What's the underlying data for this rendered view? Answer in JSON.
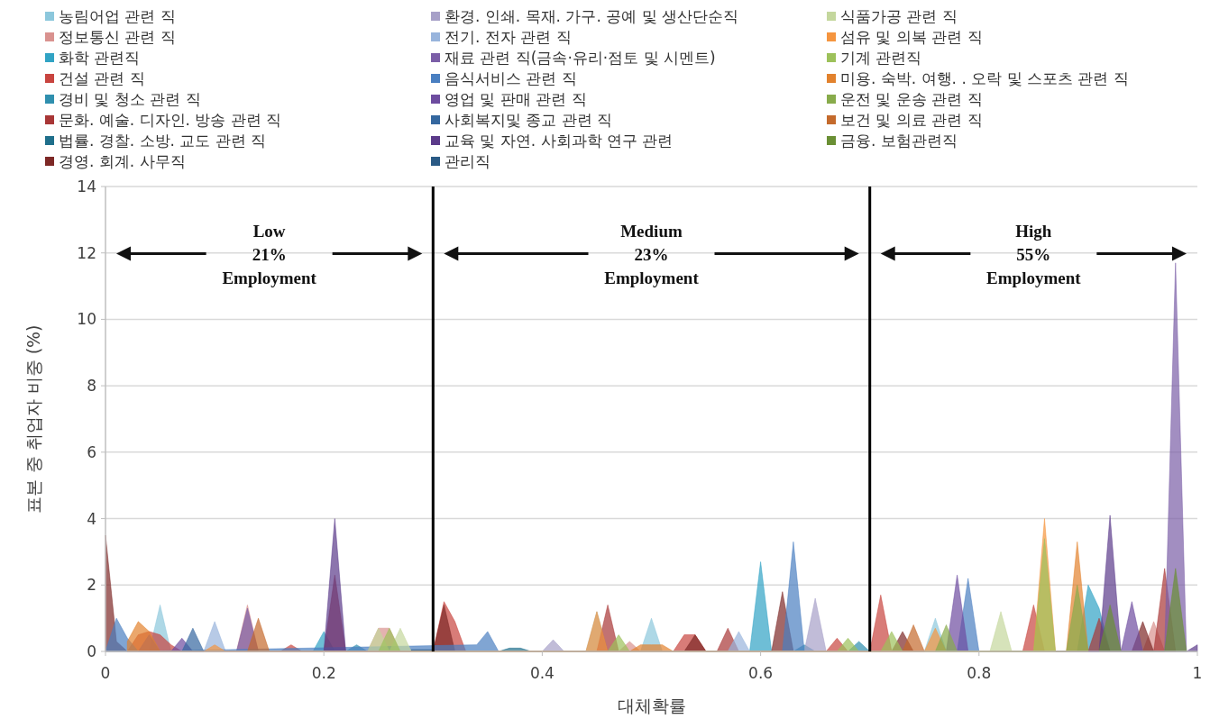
{
  "chart_data": {
    "type": "area",
    "xlabel": "대체확률",
    "ylabel": "표본 중 취업자 비중 (%)",
    "xlim": [
      0,
      1
    ],
    "xticks": [
      0,
      0.2,
      0.4,
      0.6,
      0.8,
      1
    ],
    "ylim": [
      0,
      14
    ],
    "yticks": [
      0,
      2,
      4,
      6,
      8,
      10,
      12,
      14
    ],
    "grid": "y",
    "legend": "top",
    "ref_lines": [
      {
        "axis": "x",
        "value": 0.3,
        "color": "#000000"
      },
      {
        "axis": "x",
        "value": 0.7,
        "color": "#000000"
      }
    ],
    "annotations": [
      "Low\n21%\nEmployment",
      "Medium\n23%\nEmployment",
      "High\n55%\nEmployment"
    ],
    "series": [
      {
        "name": "농림어업 관련 직",
        "color": "#8cc7dc",
        "x": [
          0.04,
          0.05,
          0.06,
          0.44,
          0.45,
          0.46,
          0.49,
          0.5,
          0.51,
          0.75,
          0.76,
          0.77
        ],
        "values": [
          0,
          1.4,
          0,
          0,
          1.2,
          0,
          0,
          1,
          0,
          0,
          1,
          0
        ]
      },
      {
        "name": "정보통신 관련 직",
        "color": "#d9928f",
        "x": [
          0.12,
          0.13,
          0.14,
          0.24,
          0.25,
          0.26,
          0.27,
          0.47,
          0.48,
          0.49,
          0.95,
          0.96,
          0.97
        ],
        "values": [
          0,
          1.4,
          0,
          0,
          0.7,
          0.7,
          0,
          0,
          0.3,
          0,
          0,
          0.9,
          0
        ]
      },
      {
        "name": "화학 관련직",
        "color": "#31a3c4",
        "x": [
          0.19,
          0.2,
          0.21,
          0.59,
          0.6,
          0.61,
          0.89,
          0.9,
          0.91,
          0.92
        ],
        "values": [
          0,
          0.6,
          0,
          0,
          2.7,
          0,
          0,
          2,
          1.3,
          0
        ]
      },
      {
        "name": "건설 관련 직",
        "color": "#c8443f",
        "x": [
          0.02,
          0.03,
          0.04,
          0.05,
          0.06,
          0.07,
          0.16,
          0.17,
          0.18,
          0.3,
          0.31,
          0.32,
          0.33,
          0.52,
          0.53,
          0.54,
          0.55,
          0.66,
          0.67,
          0.68,
          0.7,
          0.71,
          0.72,
          0.84,
          0.85,
          0.86
        ],
        "values": [
          0,
          0.5,
          0.6,
          0.5,
          0.2,
          0,
          0,
          0.2,
          0,
          0,
          1.5,
          0.9,
          0,
          0,
          0.5,
          0.5,
          0,
          0,
          0.4,
          0,
          0,
          1.7,
          0,
          0,
          1.4,
          0
        ]
      },
      {
        "name": "경비 및 청소 관련 직",
        "color": "#2f8fae",
        "x": [
          0.22,
          0.23,
          0.24,
          0.63,
          0.64,
          0.65,
          0.68,
          0.69,
          0.7
        ],
        "values": [
          0,
          0.2,
          0,
          0,
          0.2,
          0,
          0,
          0.3,
          0
        ]
      },
      {
        "name": "문화. 예술. 디자인. 방송 관련 직",
        "color": "#a83636",
        "x": [
          0.2,
          0.21,
          0.22,
          0.45,
          0.46,
          0.47,
          0.56,
          0.57,
          0.58,
          0.9,
          0.91,
          0.92,
          0.96,
          0.97,
          0.98
        ],
        "values": [
          0,
          2.3,
          0,
          0,
          1.4,
          0,
          0,
          0.7,
          0,
          0,
          1,
          0,
          0,
          2.5,
          0
        ]
      },
      {
        "name": "법률. 경찰. 소방. 교도 관련 직",
        "color": "#1f6f8b",
        "x": [
          0.36,
          0.37,
          0.38,
          0.39
        ],
        "values": [
          0,
          0.1,
          0.1,
          0
        ]
      },
      {
        "name": "경영. 회계. 사무직",
        "color": "#7d2826",
        "x": [
          0,
          0.01,
          0.02,
          0.3,
          0.31,
          0.32,
          0.53,
          0.54,
          0.55,
          0.61,
          0.62,
          0.63,
          0.72,
          0.73,
          0.74,
          0.94,
          0.95,
          0.96
        ],
        "values": [
          3.5,
          0.3,
          0,
          0,
          1.4,
          0,
          0,
          0.5,
          0,
          0,
          1.8,
          0,
          0,
          0.6,
          0,
          0,
          0.9,
          0
        ]
      },
      {
        "name": "환경. 인쇄. 목재. 가구. 공예 및 생산단순직",
        "color": "#a7a0c8",
        "x": [
          0.4,
          0.41,
          0.42,
          0.64,
          0.65,
          0.66
        ],
        "values": [
          0,
          0.35,
          0,
          0,
          1.6,
          0
        ]
      },
      {
        "name": "전기. 전자 관련 직",
        "color": "#98b4dc",
        "x": [
          0.09,
          0.1,
          0.11,
          0.57,
          0.58,
          0.59
        ],
        "values": [
          0,
          0.9,
          0,
          0,
          0.6,
          0
        ]
      },
      {
        "name": "재료 관련 직(금속·유리·점토 및 시멘트)",
        "color": "#7b5ea7",
        "x": [
          0.12,
          0.13,
          0.14,
          0.97,
          0.98,
          0.99
        ],
        "values": [
          0,
          1.3,
          0,
          0,
          11.7,
          0
        ]
      },
      {
        "name": "음식서비스 관련 직",
        "color": "#4a7fc1",
        "x": [
          0,
          0.01,
          0.02,
          0.03,
          0.34,
          0.35,
          0.36,
          0.62,
          0.63,
          0.64,
          0.78,
          0.79,
          0.8
        ],
        "values": [
          0,
          1,
          0.4,
          0,
          0.2,
          0.6,
          0,
          0,
          3.3,
          0,
          0,
          2.2,
          0
        ]
      },
      {
        "name": "영업 및 판매 관련 직",
        "color": "#6d4c9f",
        "x": [
          0.03,
          0.04,
          0.05,
          0.06,
          0.07,
          0.08,
          0.77,
          0.78,
          0.79,
          0.93,
          0.94,
          0.95
        ],
        "values": [
          0,
          0.5,
          0,
          0,
          0.4,
          0,
          0,
          2.3,
          0,
          0,
          1.5,
          0
        ]
      },
      {
        "name": "사회복지및 종교 관련 직",
        "color": "#34679f",
        "x": [
          0.07,
          0.08,
          0.09
        ],
        "values": [
          0,
          0.7,
          0
        ]
      },
      {
        "name": "교육 및 자연. 사회과학 연구 관련",
        "color": "#5b3a8a",
        "x": [
          0.2,
          0.21,
          0.22,
          0.91,
          0.92,
          0.93,
          0.99,
          1
        ],
        "values": [
          0,
          4,
          0,
          0,
          4.1,
          0,
          0,
          0.2
        ]
      },
      {
        "name": "관리직",
        "color": "#2a5a85",
        "x": [
          0.28,
          0.29,
          0.3
        ],
        "values": [
          0.05,
          0.05,
          0.05
        ]
      },
      {
        "name": "식품가공 관련 직",
        "color": "#c4d79d",
        "x": [
          0.24,
          0.25,
          0.26,
          0.27,
          0.28,
          0.81,
          0.82,
          0.83
        ],
        "values": [
          0,
          0.7,
          0,
          0.7,
          0,
          0,
          1.2,
          0
        ]
      },
      {
        "name": "섬유 및 의복 관련 직",
        "color": "#f5953f",
        "x": [
          0.09,
          0.1,
          0.11,
          0.44,
          0.45,
          0.46,
          0.75,
          0.76,
          0.77,
          0.85,
          0.86,
          0.87
        ],
        "values": [
          0,
          0.2,
          0,
          0,
          1.2,
          0,
          0,
          0.7,
          0,
          0,
          4,
          0
        ]
      },
      {
        "name": "기계 관련직",
        "color": "#9dc15a",
        "x": [
          0.25,
          0.26,
          0.27,
          0.46,
          0.47,
          0.48,
          0.67,
          0.68,
          0.69,
          0.71,
          0.72,
          0.73,
          0.85,
          0.86,
          0.87
        ],
        "values": [
          0,
          0.7,
          0,
          0,
          0.5,
          0,
          0,
          0.4,
          0,
          0,
          0.6,
          0,
          0,
          3.4,
          0
        ]
      },
      {
        "name": "미용. 숙박. 여행. . 오락 및 스포츠 관련 직",
        "color": "#e2822d",
        "x": [
          0.02,
          0.03,
          0.04,
          0.05,
          0.48,
          0.49,
          0.5,
          0.51,
          0.52,
          0.88,
          0.89,
          0.9
        ],
        "values": [
          0.3,
          0.9,
          0.6,
          0,
          0,
          0.2,
          0.2,
          0.2,
          0,
          0,
          3.3,
          0
        ]
      },
      {
        "name": "운전 및 운송 관련 직",
        "color": "#88ab4b",
        "x": [
          0.76,
          0.77,
          0.78,
          0.88,
          0.89,
          0.9
        ],
        "values": [
          0,
          0.8,
          0,
          0,
          2,
          0
        ]
      },
      {
        "name": "보건 및 의료 관련 직",
        "color": "#c46a2c",
        "x": [
          0.13,
          0.14,
          0.15,
          0.73,
          0.74,
          0.75
        ],
        "values": [
          0,
          1,
          0,
          0,
          0.8,
          0
        ]
      },
      {
        "name": "금융. 보험관련직",
        "color": "#6a8f34",
        "x": [
          0.91,
          0.92,
          0.93,
          0.97,
          0.98,
          0.99
        ],
        "values": [
          0,
          1.4,
          0,
          0,
          2.5,
          0
        ]
      }
    ]
  }
}
